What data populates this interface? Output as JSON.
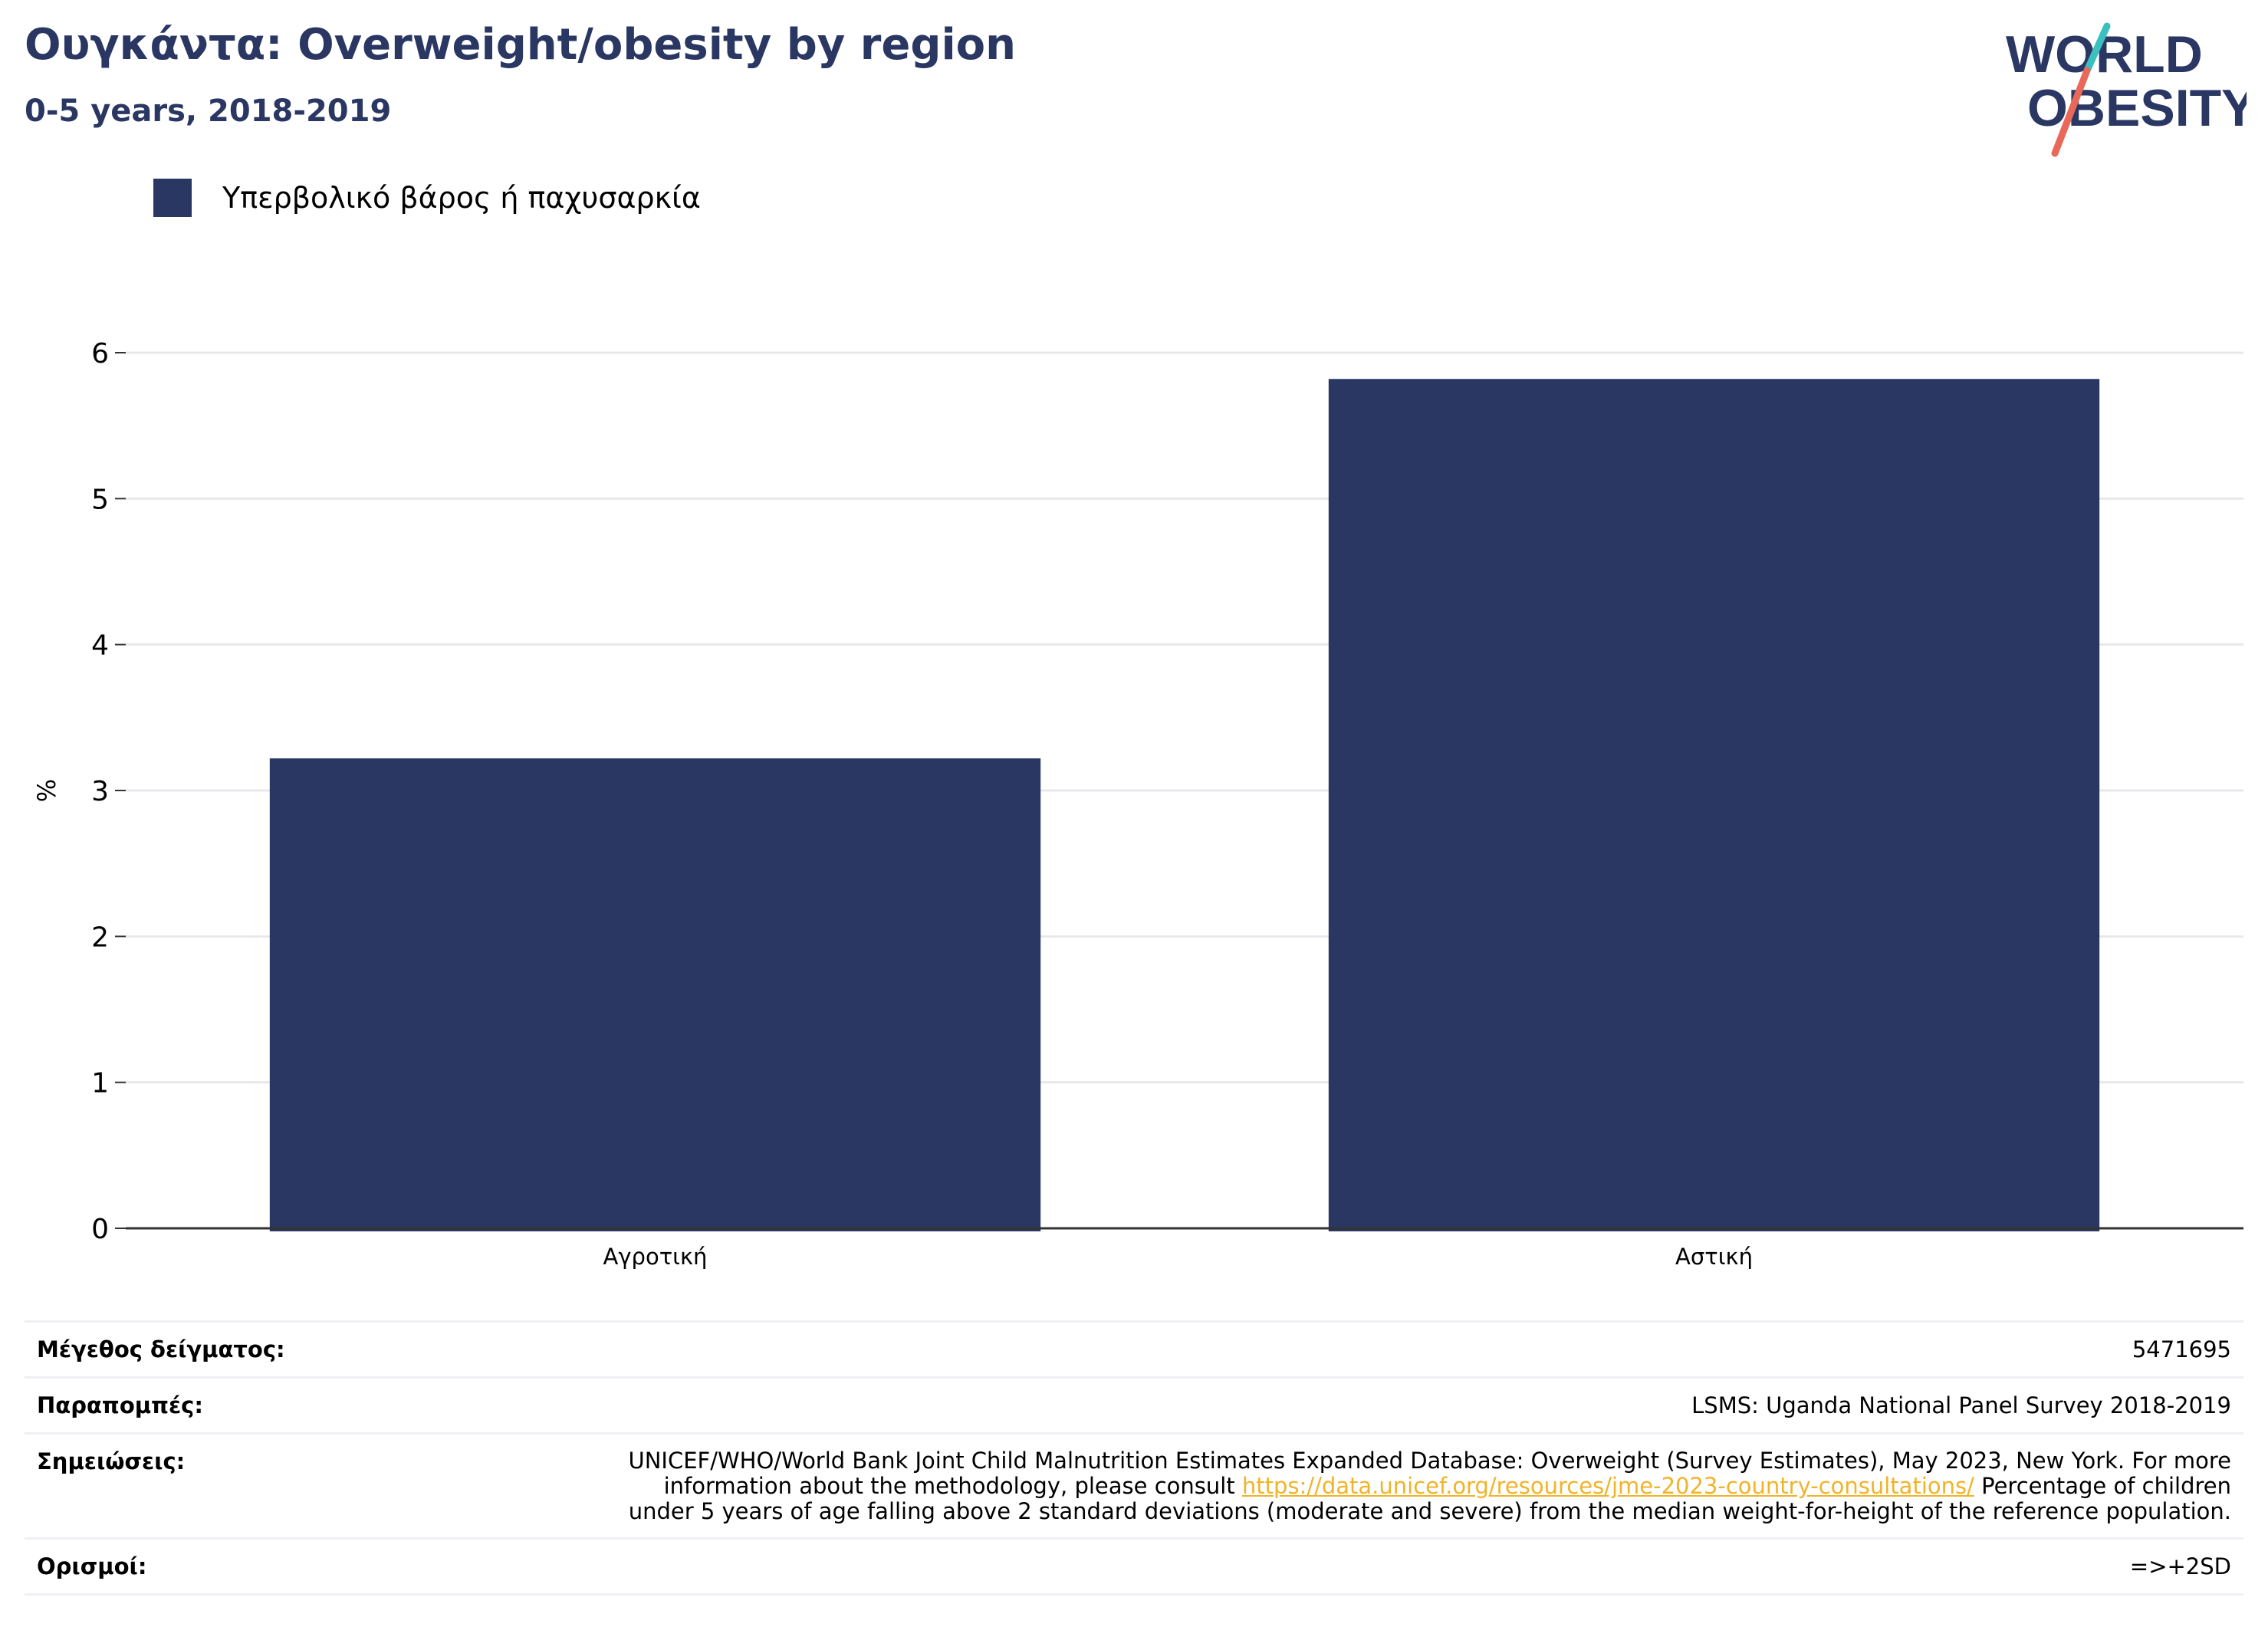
{
  "header": {
    "title": "Ουγκάντα: Overweight/obesity by region",
    "subtitle": "0-5 years, 2018-2019"
  },
  "logo": {
    "line1": "WORLD",
    "line2": "OBESITY",
    "colors": {
      "text": "#2a3763",
      "slash_top": "#3bbfbf",
      "slash_bottom": "#e8685a"
    }
  },
  "colors": {
    "bar": "#2a3763",
    "grid": "#e8e8ec",
    "axis": "#333333",
    "link": "#f0b429"
  },
  "chart_data": {
    "type": "bar",
    "categories": [
      "Αγροτική",
      "Αστική"
    ],
    "series": [
      {
        "name": "Υπερβολικό βάρος ή παχυσαρκία",
        "values": [
          3.22,
          5.82
        ]
      }
    ],
    "ylabel": "%",
    "xlabel": "",
    "ylim": [
      0,
      6
    ],
    "yticks": [
      0,
      1,
      2,
      3,
      4,
      5,
      6
    ],
    "grid": true,
    "legend": "top-left"
  },
  "meta": {
    "sample_label": "Μέγεθος δείγματος:",
    "sample_value": "5471695",
    "refs_label": "Παραπομπές:",
    "refs_value": "LSMS: Uganda National Panel Survey 2018-2019",
    "notes_label": "Σημειώσεις:",
    "notes_before": "UNICEF/WHO/World Bank Joint Child Malnutrition Estimates Expanded Database: Overweight (Survey Estimates), May 2023, New York. For more information about the methodology, please consult ",
    "notes_link": "https://data.unicef.org/resources/jme-2023-country-consultations/",
    "notes_after": " Percentage of children under 5 years of age falling above 2 standard deviations (moderate and severe) from the median weight-for-height of the reference population.",
    "defs_label": "Ορισμοί:",
    "defs_value": "=>+2SD"
  }
}
